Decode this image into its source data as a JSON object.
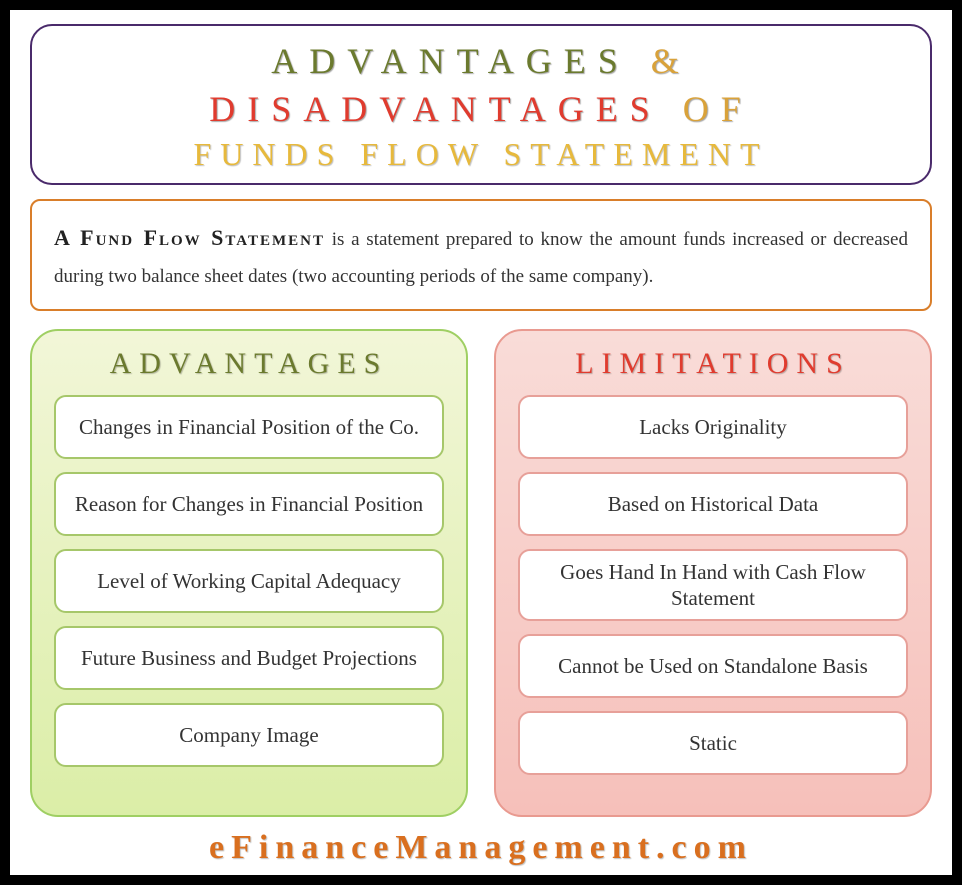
{
  "colors": {
    "olive": "#6b7a2e",
    "amber": "#d9a23a",
    "red": "#e03b2e",
    "gold": "#e7b93c",
    "purple_border": "#4a2a6b",
    "orange_border": "#d97e2a",
    "adv_bg_top": "#f2f6d8",
    "adv_bg_bottom": "#dbeea7",
    "adv_border": "#9fcf63",
    "lim_bg_top": "#f9dcd8",
    "lim_bg_bottom": "#f6c0ba",
    "lim_border": "#e99a90",
    "footer": "#d96f1f",
    "canvas_bg": "#ffffff",
    "page_bg": "#000000"
  },
  "title": {
    "line1_a": "ADVANTAGES",
    "line1_amp": " & ",
    "line2_a": "DISADVANTAGES",
    "line2_b": " OF",
    "line3": "FUNDS FLOW STATEMENT"
  },
  "definition": {
    "lead": "A Fund Flow Statement",
    "rest": " is a statement prepared to know the amount funds increased or decreased during two balance sheet dates (two accounting periods of the same company)."
  },
  "advantages": {
    "heading": "ADVANTAGES",
    "items": [
      "Changes in Financial Position of the Co.",
      "Reason for Changes in Financial Position",
      "Level of Working Capital Adequacy",
      "Future Business and Budget Projections",
      "Company Image"
    ]
  },
  "limitations": {
    "heading": "LIMITATIONS",
    "items": [
      "Lacks Originality",
      "Based on Historical Data",
      "Goes Hand In Hand with Cash Flow Statement",
      "Cannot be Used on Standalone Basis",
      "Static"
    ]
  },
  "footer": "eFinanceManagement.com"
}
